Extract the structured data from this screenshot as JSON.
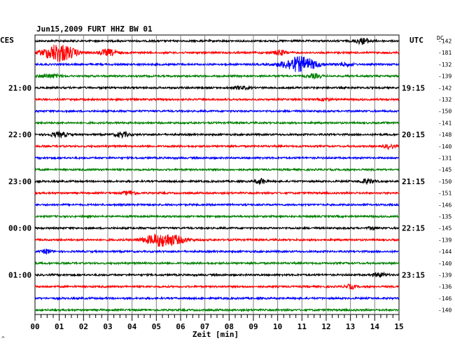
{
  "header": {
    "title": "Jun15,2009   FURT HHZ BW 01",
    "left_zone": "CES",
    "right_zone": "UTC",
    "dc_label": "DC"
  },
  "chart_data": {
    "type": "seismogram",
    "station": "FURT",
    "channel": "HHZ",
    "network": "BW",
    "location": "01",
    "date": "Jun15,2009",
    "xlabel": "Zeit [min]",
    "xlim": [
      0,
      15
    ],
    "x_ticks": [
      "00",
      "01",
      "02",
      "03",
      "04",
      "05",
      "06",
      "07",
      "08",
      "09",
      "10",
      "11",
      "12",
      "13",
      "14",
      "15"
    ],
    "grid": true,
    "trace_colors": [
      "#000000",
      "#ff0000",
      "#0000ff",
      "#008000"
    ],
    "left_hour_labels": [
      {
        "row": 4,
        "text": "21:00"
      },
      {
        "row": 8,
        "text": "22:00"
      },
      {
        "row": 12,
        "text": "23:00"
      },
      {
        "row": 16,
        "text": "00:00"
      },
      {
        "row": 20,
        "text": "01:00"
      }
    ],
    "right_hour_labels": [
      {
        "row": 4,
        "text": "19:15"
      },
      {
        "row": 8,
        "text": "20:15"
      },
      {
        "row": 12,
        "text": "21:15"
      },
      {
        "row": 16,
        "text": "22:15"
      },
      {
        "row": 20,
        "text": "23:15"
      }
    ],
    "dc_offsets": [
      "-142",
      "-181",
      "-132",
      "-139",
      "-142",
      "-132",
      "-150",
      "-141",
      "-148",
      "-140",
      "-131",
      "-145",
      "-150",
      "-151",
      "-146",
      "-135",
      "-145",
      "-139",
      "-144",
      "-140",
      "-139",
      "-136",
      "-146",
      "-140"
    ],
    "events": [
      {
        "row": 0,
        "minute": 13.5,
        "amplitude": 0.7,
        "width": 0.45
      },
      {
        "row": 1,
        "minute": 1.0,
        "amplitude": 2.3,
        "width": 0.9
      },
      {
        "row": 1,
        "minute": 3.0,
        "amplitude": 0.8,
        "width": 0.5
      },
      {
        "row": 1,
        "minute": 10.1,
        "amplitude": 0.6,
        "width": 0.4
      },
      {
        "row": 2,
        "minute": 10.9,
        "amplitude": 1.9,
        "width": 1.0
      },
      {
        "row": 2,
        "minute": 12.8,
        "amplitude": 0.4,
        "width": 0.4
      },
      {
        "row": 3,
        "minute": 0.6,
        "amplitude": 0.45,
        "width": 0.6
      },
      {
        "row": 3,
        "minute": 11.5,
        "amplitude": 0.5,
        "width": 0.4
      },
      {
        "row": 4,
        "minute": 8.5,
        "amplitude": 0.35,
        "width": 0.5
      },
      {
        "row": 5,
        "minute": 12.0,
        "amplitude": 0.35,
        "width": 0.3
      },
      {
        "row": 8,
        "minute": 1.0,
        "amplitude": 0.6,
        "width": 0.5
      },
      {
        "row": 8,
        "minute": 3.6,
        "amplitude": 0.6,
        "width": 0.4
      },
      {
        "row": 9,
        "minute": 14.6,
        "amplitude": 0.5,
        "width": 0.3
      },
      {
        "row": 12,
        "minute": 9.3,
        "amplitude": 0.7,
        "width": 0.3
      },
      {
        "row": 12,
        "minute": 13.7,
        "amplitude": 0.6,
        "width": 0.4
      },
      {
        "row": 13,
        "minute": 3.9,
        "amplitude": 0.5,
        "width": 0.4
      },
      {
        "row": 16,
        "minute": 13.9,
        "amplitude": 0.4,
        "width": 0.2
      },
      {
        "row": 17,
        "minute": 5.3,
        "amplitude": 1.7,
        "width": 1.1
      },
      {
        "row": 18,
        "minute": 0.5,
        "amplitude": 0.6,
        "width": 0.25
      },
      {
        "row": 20,
        "minute": 14.2,
        "amplitude": 0.5,
        "width": 0.4
      },
      {
        "row": 21,
        "minute": 13.0,
        "amplitude": 0.5,
        "width": 0.3
      }
    ]
  }
}
